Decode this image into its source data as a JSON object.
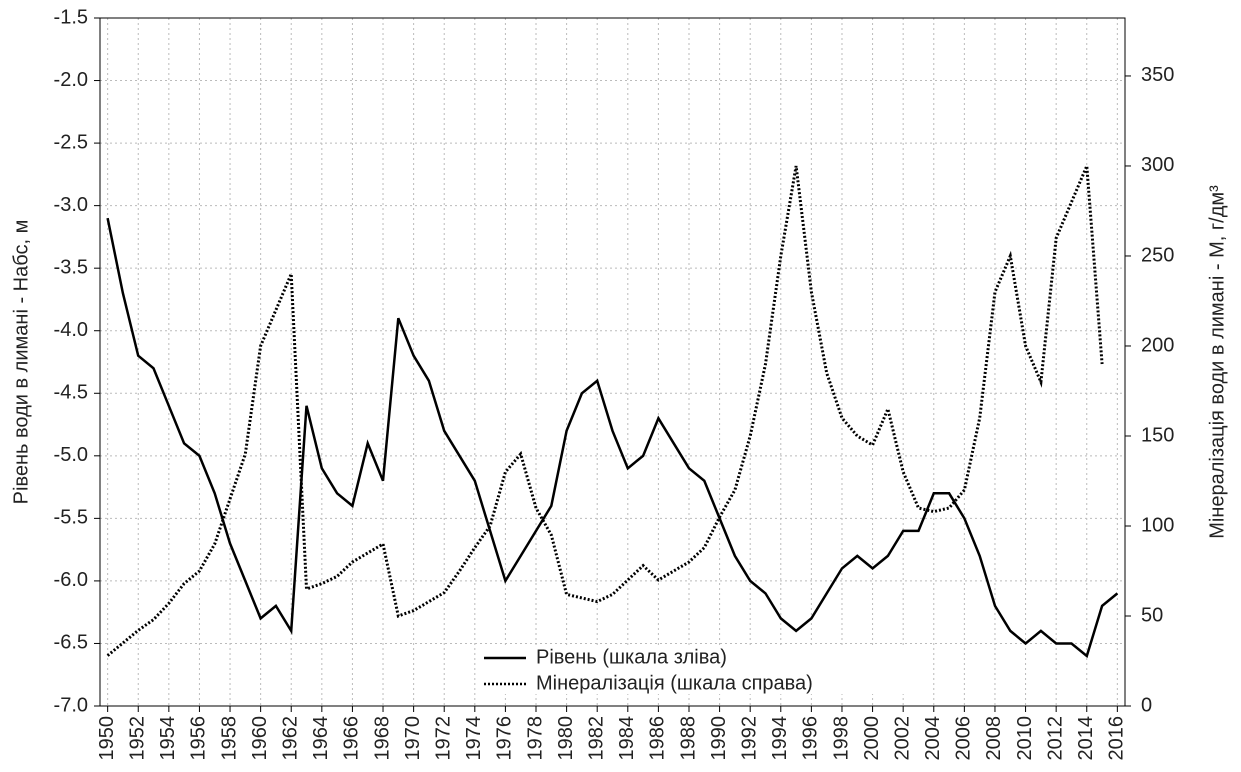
{
  "chart_data": {
    "type": "line",
    "y_label": "Рівень води в лимані - Набс, м",
    "y2_label": "Мінералізація води в лимані - М, г/дм³",
    "x": [
      1950,
      1951,
      1952,
      1953,
      1954,
      1955,
      1956,
      1957,
      1958,
      1959,
      1960,
      1961,
      1962,
      1963,
      1964,
      1965,
      1966,
      1967,
      1968,
      1969,
      1970,
      1971,
      1972,
      1973,
      1974,
      1975,
      1976,
      1977,
      1978,
      1979,
      1980,
      1981,
      1982,
      1983,
      1984,
      1985,
      1986,
      1987,
      1988,
      1989,
      1990,
      1991,
      1992,
      1993,
      1994,
      1995,
      1996,
      1997,
      1998,
      1999,
      2000,
      2001,
      2002,
      2003,
      2004,
      2005,
      2006,
      2007,
      2008,
      2009,
      2010,
      2011,
      2012,
      2013,
      2014,
      2015,
      2016
    ],
    "series": [
      {
        "name": "Рівень (шкала зліва)",
        "color": "#000000",
        "style": "solid",
        "axis": "y",
        "values": [
          -3.1,
          -3.7,
          -4.2,
          -4.3,
          -4.6,
          -4.9,
          -5.0,
          -5.3,
          -5.7,
          -6.0,
          -6.3,
          -6.2,
          -6.4,
          -4.6,
          -5.1,
          -5.3,
          -5.4,
          -4.9,
          -5.2,
          -3.9,
          -4.2,
          -4.4,
          -4.8,
          -5.0,
          -5.2,
          -5.6,
          -6.0,
          -5.8,
          -5.6,
          -5.4,
          -4.8,
          -4.5,
          -4.4,
          -4.8,
          -5.1,
          -5.0,
          -4.7,
          -4.9,
          -5.1,
          -5.2,
          -5.5,
          -5.8,
          -6.0,
          -6.1,
          -6.3,
          -6.4,
          -6.3,
          -6.1,
          -5.9,
          -5.8,
          -5.9,
          -5.8,
          -5.6,
          -5.6,
          -5.3,
          -5.3,
          -5.5,
          -5.8,
          -6.2,
          -6.4,
          -6.5,
          -6.4,
          -6.5,
          -6.5,
          -6.6,
          -6.2,
          -6.1
        ]
      },
      {
        "name": "Мінералізація (шкала справа)",
        "color": "#000000",
        "style": "dotted",
        "axis": "y2",
        "values": [
          28,
          35,
          42,
          48,
          57,
          68,
          75,
          90,
          115,
          140,
          200,
          220,
          240,
          65,
          68,
          72,
          80,
          85,
          90,
          50,
          53,
          58,
          63,
          75,
          88,
          100,
          130,
          140,
          110,
          95,
          62,
          60,
          58,
          62,
          70,
          78,
          70,
          75,
          80,
          88,
          105,
          120,
          150,
          190,
          250,
          300,
          230,
          185,
          160,
          150,
          145,
          165,
          130,
          110,
          108,
          110,
          120,
          160,
          230,
          250,
          200,
          180,
          260,
          280,
          300,
          190,
          null
        ]
      }
    ],
    "xlim": [
      1949.5,
      2016.5
    ],
    "xticks": [
      1950,
      1952,
      1954,
      1956,
      1958,
      1960,
      1962,
      1964,
      1966,
      1968,
      1970,
      1972,
      1974,
      1976,
      1978,
      1980,
      1982,
      1984,
      1986,
      1988,
      1990,
      1992,
      1994,
      1996,
      1998,
      2000,
      2002,
      2004,
      2006,
      2008,
      2010,
      2012,
      2014,
      2016
    ],
    "ylim": [
      -7,
      -1.5
    ],
    "yticks": [
      {
        "value": -7,
        "label": "-7.0"
      },
      -6.5,
      {
        "value": -6,
        "label": "-6.0"
      },
      -5.5,
      {
        "value": -5,
        "label": "-5.0"
      },
      -4.5,
      {
        "value": -4,
        "label": "-4.0"
      },
      -3.5,
      {
        "value": -3,
        "label": "-3.0"
      },
      -2.5,
      {
        "value": -2,
        "label": "-2.0"
      },
      -1.5
    ],
    "y2lim": [
      0,
      382.2
    ],
    "y2ticks": [
      0,
      50,
      100,
      150,
      200,
      250,
      300,
      350
    ],
    "grid": true,
    "legend": "bottom"
  }
}
